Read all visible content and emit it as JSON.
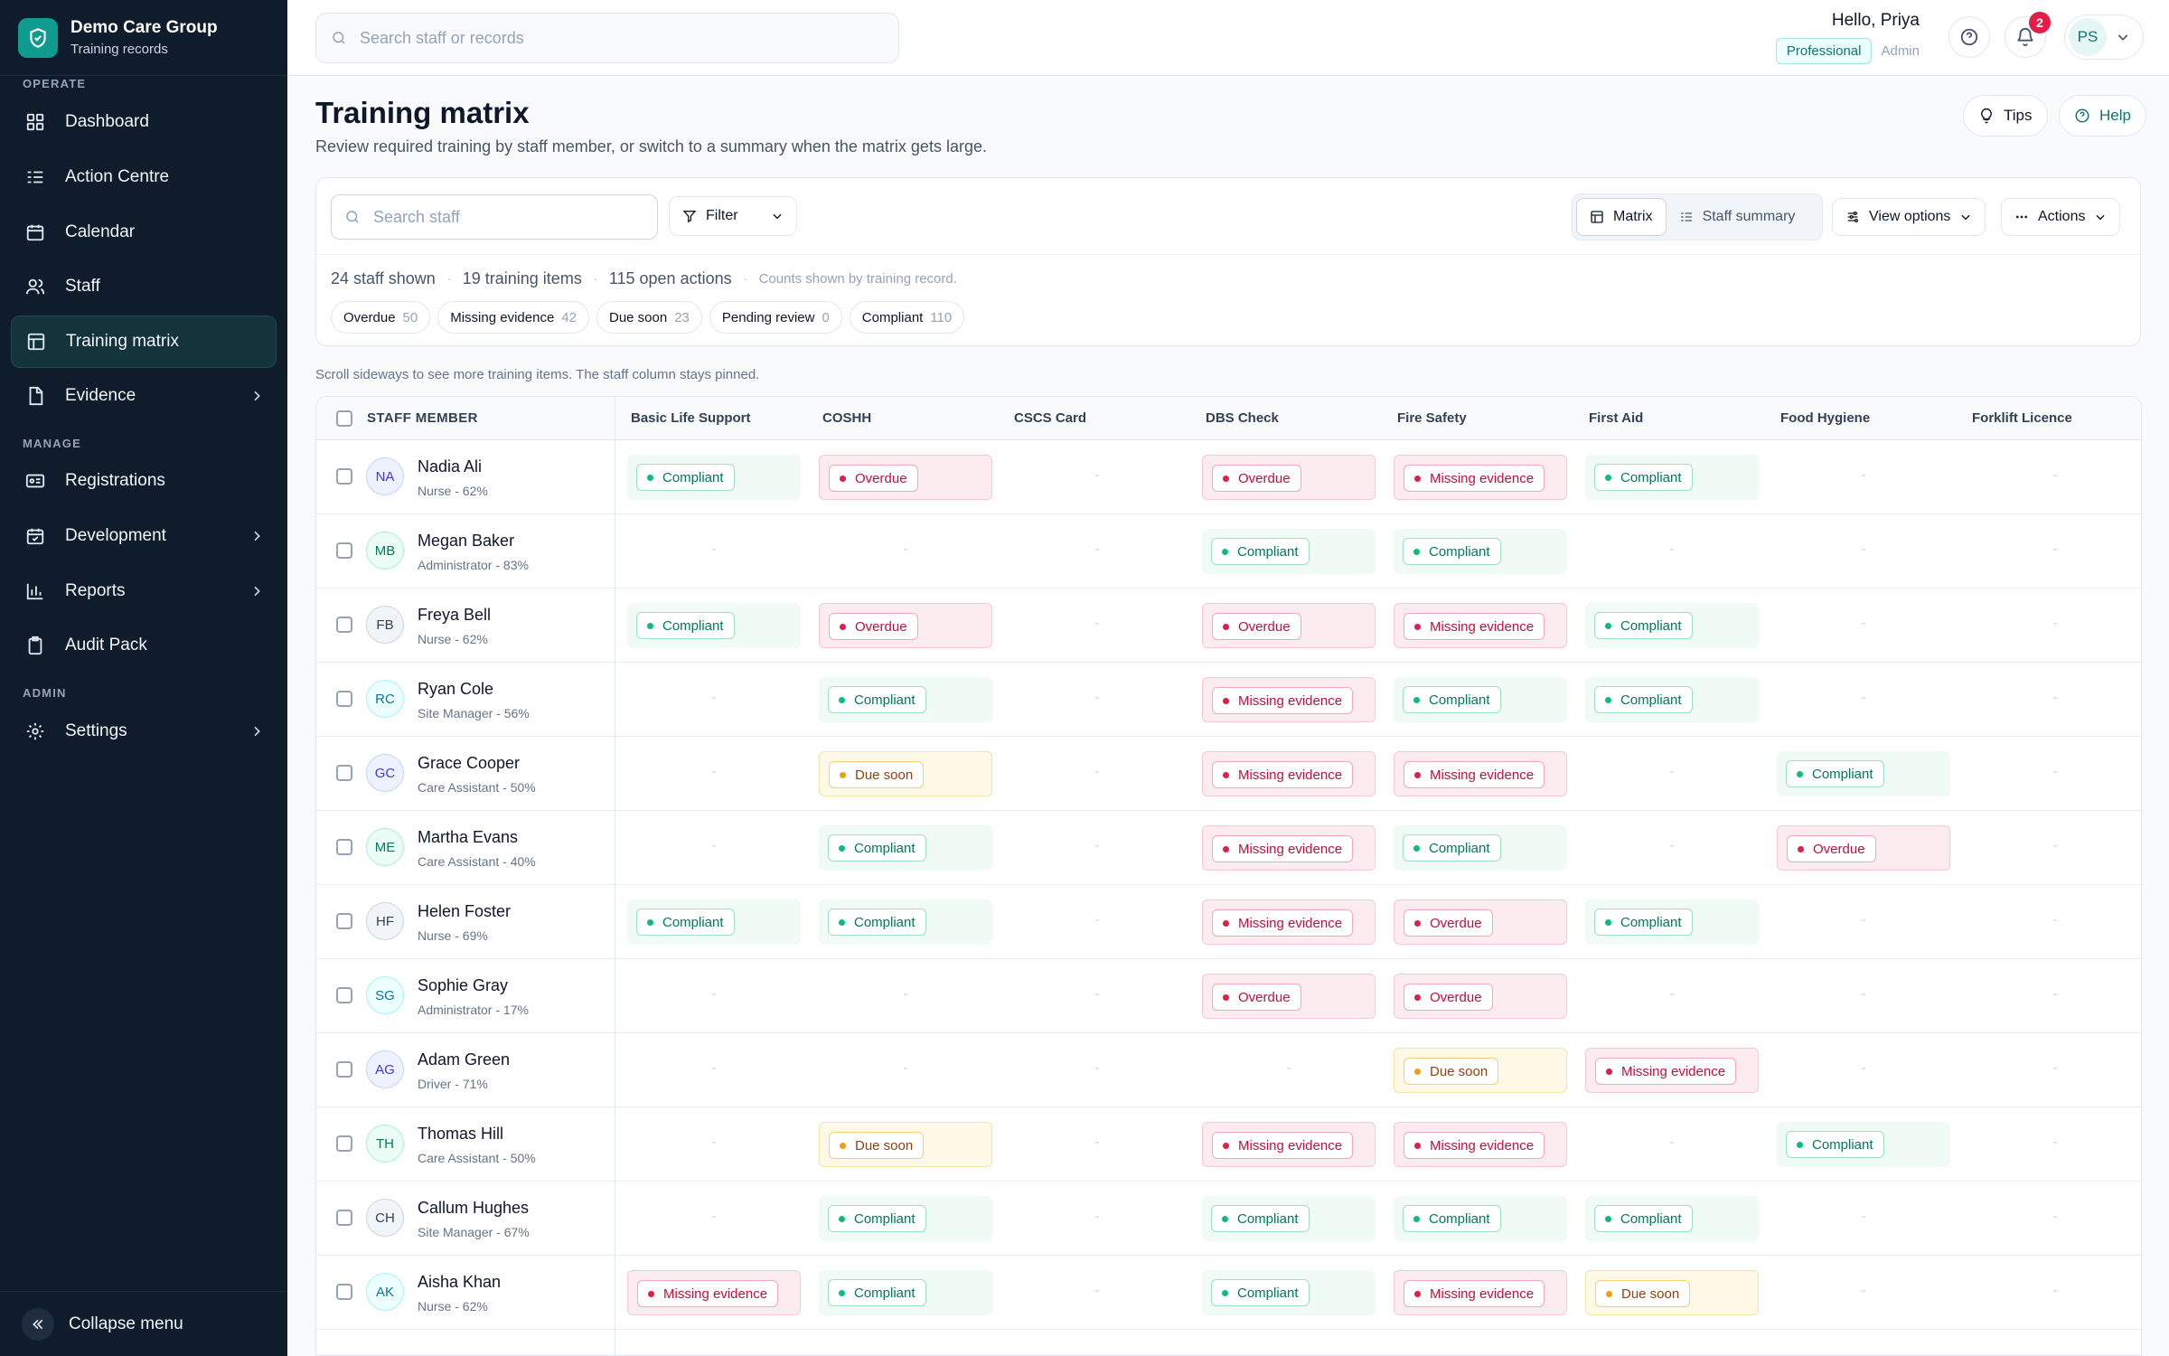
{
  "brand": {
    "name": "Demo Care Group",
    "subtitle": "Training records"
  },
  "nav": {
    "sections": {
      "operate": "OPERATE",
      "manage": "MANAGE",
      "admin": "ADMIN"
    },
    "items": [
      {
        "label": "Dashboard",
        "icon": "dashboard-icon"
      },
      {
        "label": "Action Centre",
        "icon": "list-check-icon"
      },
      {
        "label": "Calendar",
        "icon": "calendar-icon"
      },
      {
        "label": "Staff",
        "icon": "users-icon"
      },
      {
        "label": "Training matrix",
        "icon": "table-icon",
        "active": true
      },
      {
        "label": "Evidence",
        "icon": "document-icon",
        "expandable": true
      },
      {
        "label": "Registrations",
        "icon": "id-card-icon"
      },
      {
        "label": "Development",
        "icon": "calendar-check-icon",
        "expandable": true
      },
      {
        "label": "Reports",
        "icon": "bar-chart-icon",
        "expandable": true
      },
      {
        "label": "Audit Pack",
        "icon": "clipboard-icon"
      },
      {
        "label": "Settings",
        "icon": "gear-icon",
        "expandable": true
      }
    ],
    "collapse_label": "Collapse menu"
  },
  "topbar": {
    "search_placeholder": "Search staff or records",
    "greeting": "Hello, Priya",
    "plan": "Professional",
    "role": "Admin",
    "notification_count": "2",
    "user_initials": "PS"
  },
  "page": {
    "title": "Training matrix",
    "subtitle": "Review required training by staff member, or switch to a summary when the matrix gets large.",
    "tips_label": "Tips",
    "help_label": "Help"
  },
  "toolbar": {
    "search_placeholder": "Search staff",
    "filter_label": "Filter",
    "view_matrix": "Matrix",
    "view_summary": "Staff summary",
    "view_options": "View options",
    "actions": "Actions",
    "stats": {
      "staff": "24 staff shown",
      "items": "19 training items",
      "actions": "115 open actions",
      "note": "Counts shown by training record."
    },
    "chips": [
      {
        "label": "Overdue",
        "count": "50"
      },
      {
        "label": "Missing evidence",
        "count": "42"
      },
      {
        "label": "Due soon",
        "count": "23"
      },
      {
        "label": "Pending review",
        "count": "0"
      },
      {
        "label": "Compliant",
        "count": "110"
      }
    ]
  },
  "scroll_note": "Scroll sideways to see more training items. The staff column stays pinned.",
  "table": {
    "staff_header": "STAFF MEMBER",
    "columns": [
      "Basic Life Support",
      "COSHH",
      "CSCS Card",
      "DBS Check",
      "Fire Safety",
      "First Aid",
      "Food Hygiene",
      "Forklift Licence"
    ],
    "status_labels": {
      "compliant": "Compliant",
      "overdue": "Overdue",
      "missing": "Missing evidence",
      "due": "Due soon",
      "none": "-"
    },
    "rows": [
      {
        "initials": "NA",
        "name": "Nadia Ali",
        "role": "Nurse - 62%",
        "cells": [
          "compliant",
          "overdue",
          "none",
          "overdue",
          "missing",
          "compliant",
          "none",
          "none"
        ]
      },
      {
        "initials": "MB",
        "name": "Megan Baker",
        "role": "Administrator - 83%",
        "cells": [
          "none",
          "none",
          "none",
          "compliant",
          "compliant",
          "none",
          "none",
          "none"
        ]
      },
      {
        "initials": "FB",
        "name": "Freya Bell",
        "role": "Nurse - 62%",
        "cells": [
          "compliant",
          "overdue",
          "none",
          "overdue",
          "missing",
          "compliant",
          "none",
          "none"
        ]
      },
      {
        "initials": "RC",
        "name": "Ryan Cole",
        "role": "Site Manager - 56%",
        "cells": [
          "none",
          "compliant",
          "none",
          "missing",
          "compliant",
          "compliant",
          "none",
          "none"
        ]
      },
      {
        "initials": "GC",
        "name": "Grace Cooper",
        "role": "Care Assistant - 50%",
        "cells": [
          "none",
          "due",
          "none",
          "missing",
          "missing",
          "none",
          "compliant",
          "none"
        ]
      },
      {
        "initials": "ME",
        "name": "Martha Evans",
        "role": "Care Assistant - 40%",
        "cells": [
          "none",
          "compliant",
          "none",
          "missing",
          "compliant",
          "none",
          "overdue",
          "none"
        ]
      },
      {
        "initials": "HF",
        "name": "Helen Foster",
        "role": "Nurse - 69%",
        "cells": [
          "compliant",
          "compliant",
          "none",
          "missing",
          "overdue",
          "compliant",
          "none",
          "none"
        ]
      },
      {
        "initials": "SG",
        "name": "Sophie Gray",
        "role": "Administrator - 17%",
        "cells": [
          "none",
          "none",
          "none",
          "overdue",
          "overdue",
          "none",
          "none",
          "none"
        ]
      },
      {
        "initials": "AG",
        "name": "Adam Green",
        "role": "Driver - 71%",
        "cells": [
          "none",
          "none",
          "none",
          "none",
          "due",
          "missing",
          "none",
          "none"
        ]
      },
      {
        "initials": "TH",
        "name": "Thomas Hill",
        "role": "Care Assistant - 50%",
        "cells": [
          "none",
          "due",
          "none",
          "missing",
          "missing",
          "none",
          "compliant",
          "none"
        ]
      },
      {
        "initials": "CH",
        "name": "Callum Hughes",
        "role": "Site Manager - 67%",
        "cells": [
          "none",
          "compliant",
          "none",
          "compliant",
          "compliant",
          "compliant",
          "none",
          "none"
        ]
      },
      {
        "initials": "AK",
        "name": "Aisha Khan",
        "role": "Nurse - 62%",
        "cells": [
          "missing",
          "compliant",
          "none",
          "compliant",
          "missing",
          "due",
          "none",
          "none"
        ]
      }
    ]
  },
  "colors": {
    "sidebar": "#0e1c2b",
    "accent": "#0f9b8e",
    "compliant": "#10b981",
    "overdue": "#e11d48",
    "due": "#f59e0b"
  }
}
